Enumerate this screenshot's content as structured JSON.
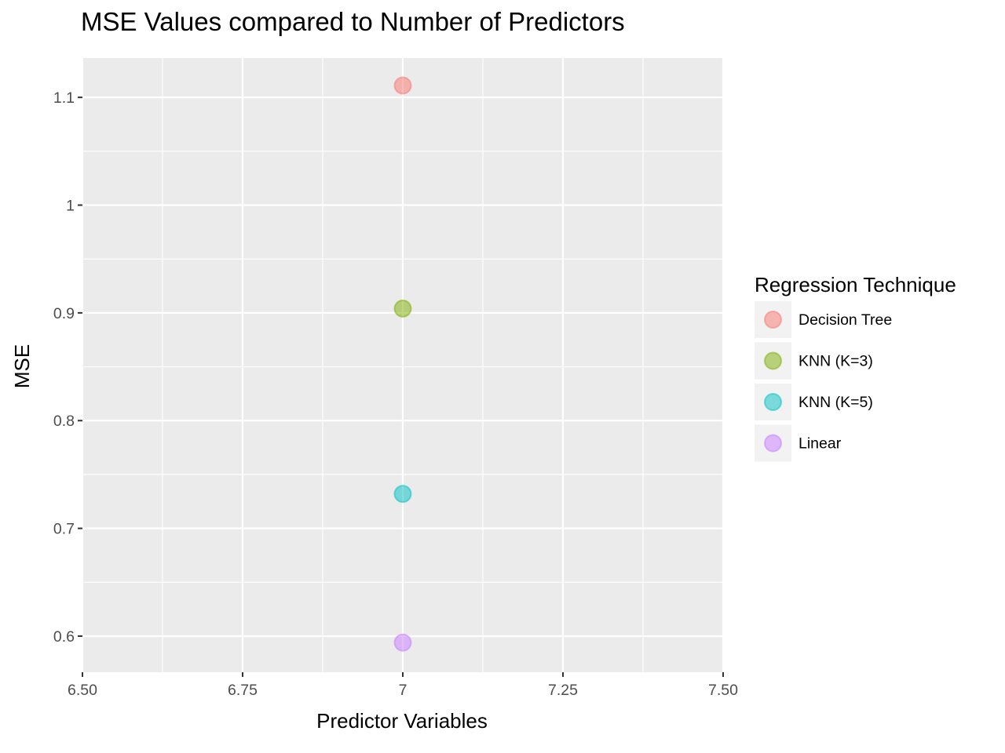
{
  "chart_data": {
    "type": "scatter",
    "title": "MSE Values compared to Number of Predictors",
    "xlabel": "Predictor Variables",
    "ylabel": "MSE",
    "xlim": [
      6.5,
      7.5
    ],
    "ylim": [
      0.5665,
      1.1365
    ],
    "x_ticks": [
      6.5,
      6.75,
      7,
      7.25,
      7.5
    ],
    "x_tick_labels": [
      "6.50",
      "6.75",
      "7",
      "7.25",
      "7.50"
    ],
    "y_ticks": [
      0.6,
      0.7,
      0.8,
      0.9,
      1.0,
      1.1
    ],
    "y_tick_labels": [
      "0.6",
      "0.7",
      "0.8",
      "0.9",
      "1",
      "1.1"
    ],
    "grid": true,
    "legend": {
      "title": "Regression Technique",
      "placement": "right"
    },
    "series": [
      {
        "name": "Decision Tree",
        "color": "#F8766D",
        "points": [
          {
            "x": 7,
            "y": 1.111
          }
        ]
      },
      {
        "name": "KNN (K=3)",
        "color": "#7CAE00",
        "points": [
          {
            "x": 7,
            "y": 0.904
          }
        ]
      },
      {
        "name": "KNN (K=5)",
        "color": "#00BFC4",
        "points": [
          {
            "x": 7,
            "y": 0.732
          }
        ]
      },
      {
        "name": "Linear",
        "color": "#C77CFF",
        "points": [
          {
            "x": 7,
            "y": 0.594
          }
        ]
      }
    ]
  }
}
